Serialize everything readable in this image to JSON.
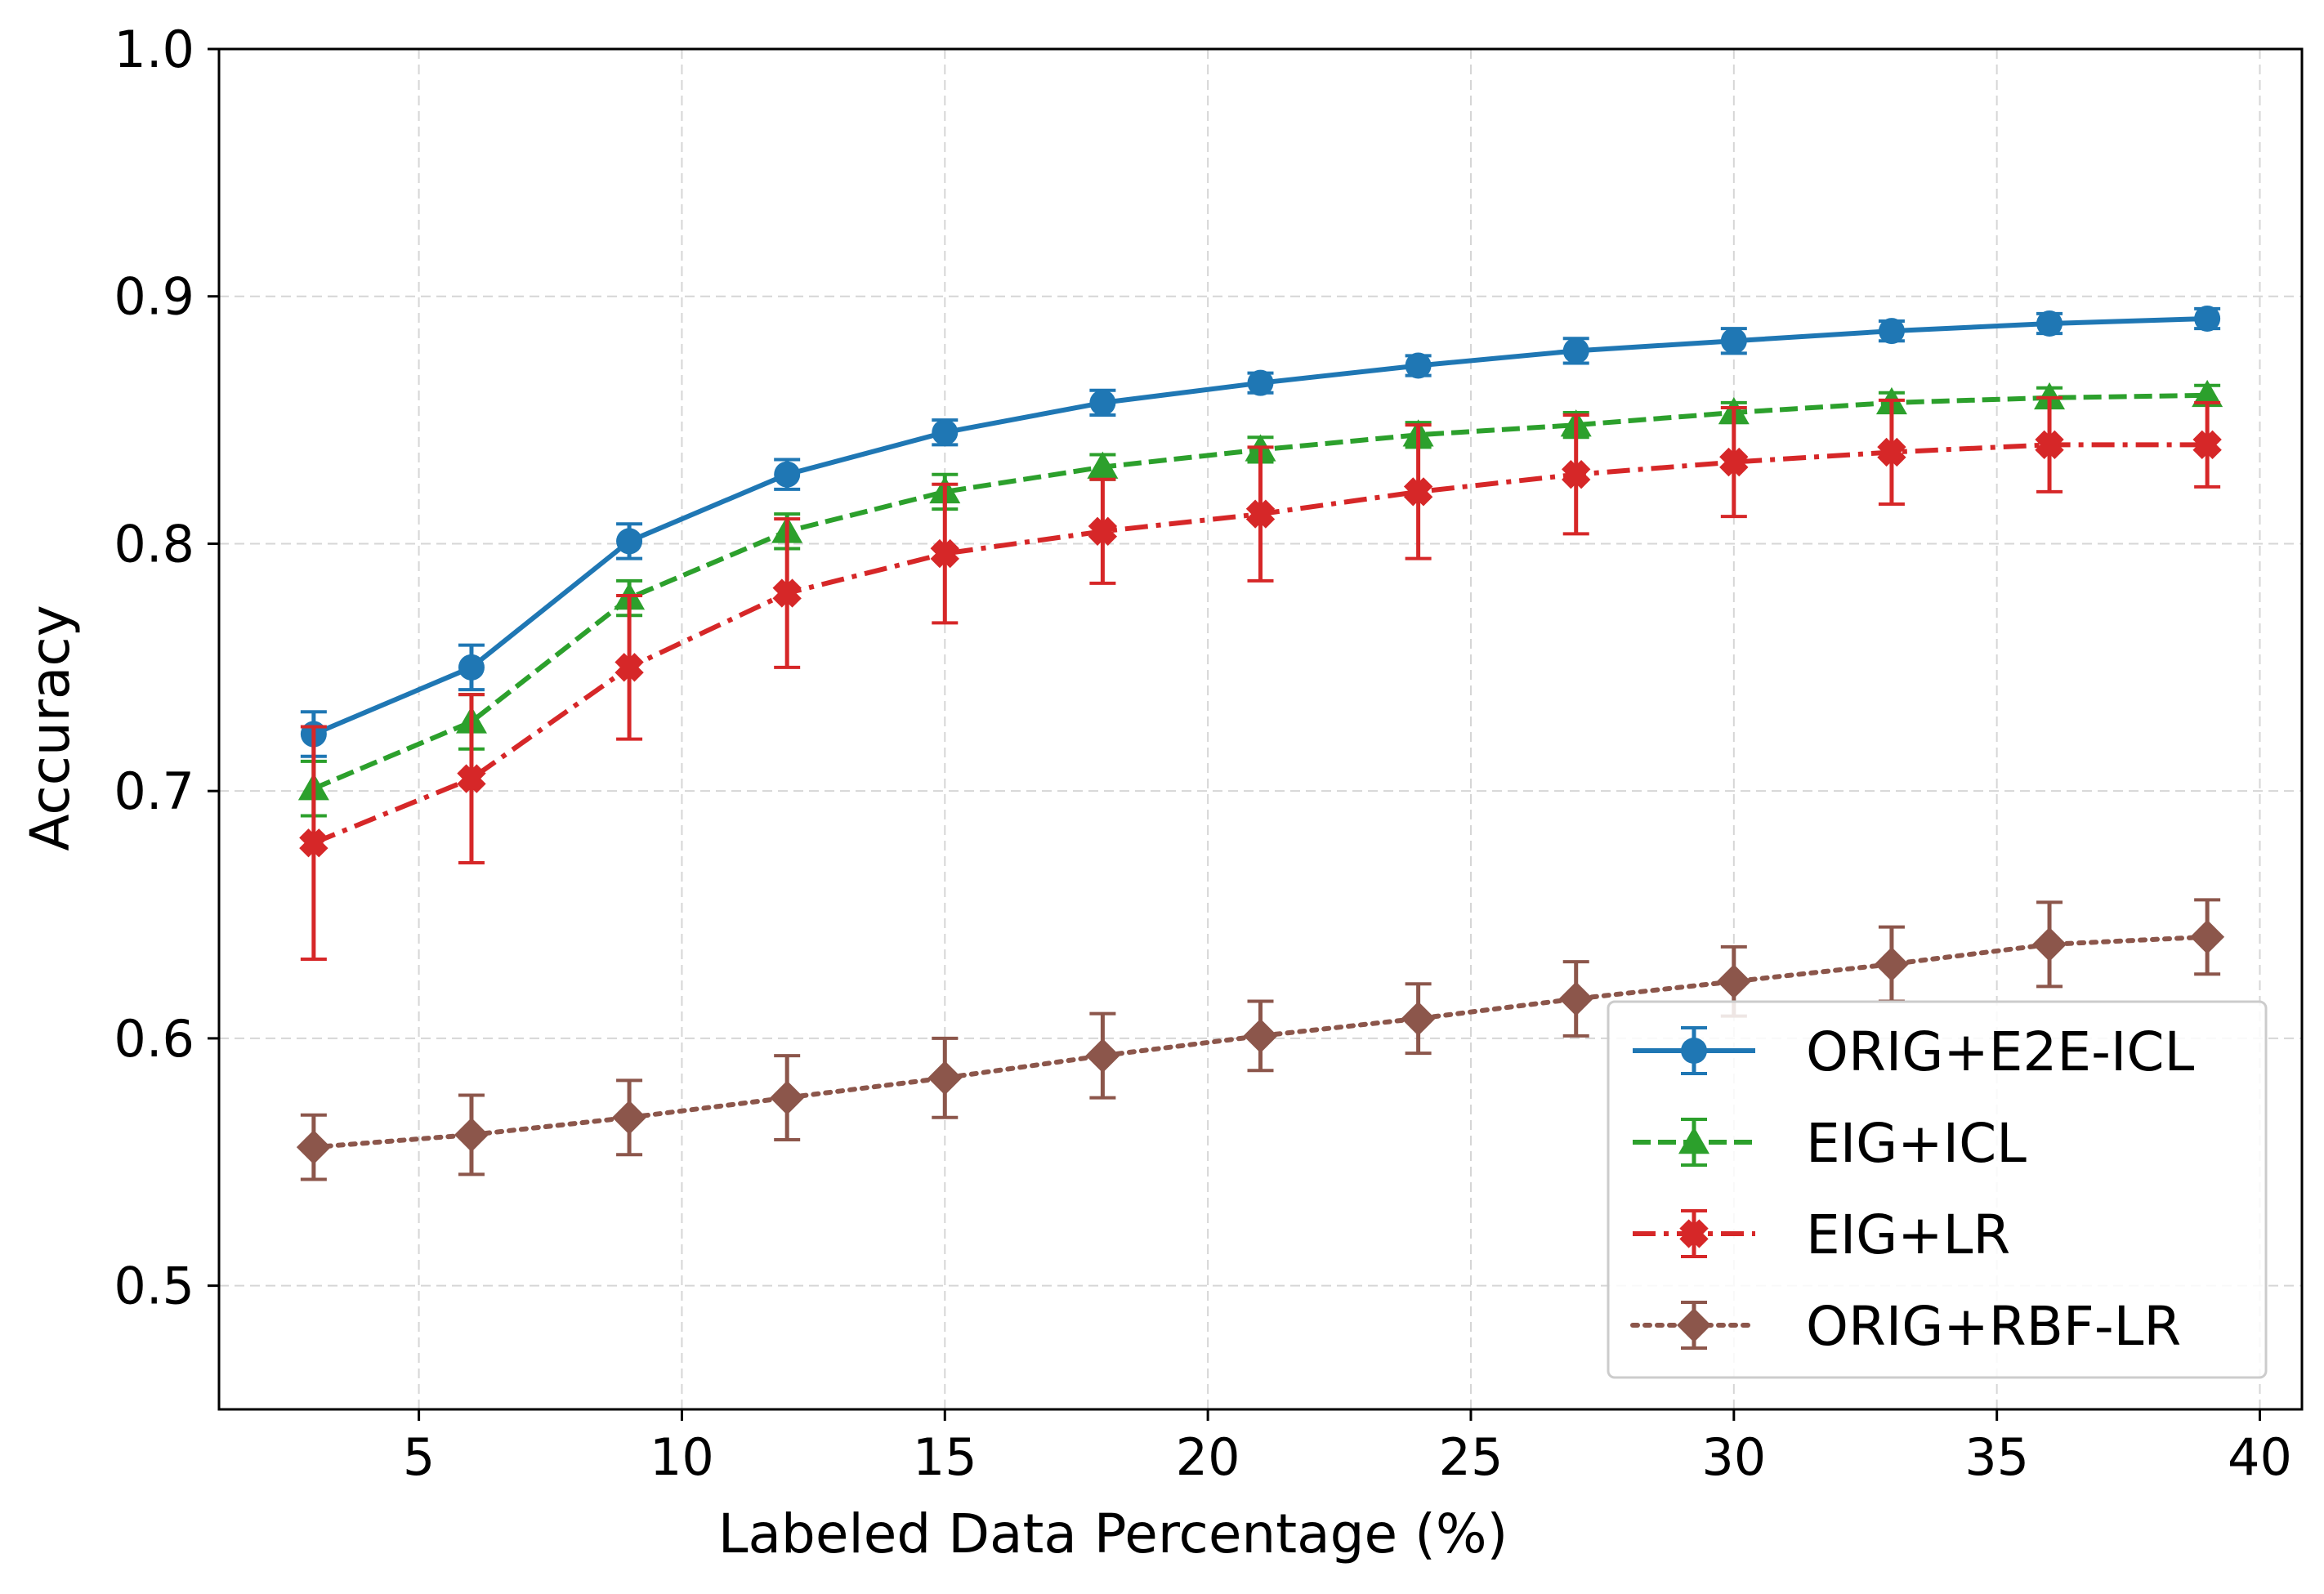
{
  "chart_data": {
    "type": "line",
    "title": "",
    "xlabel": "Labeled Data Percentage (%)",
    "ylabel": "Accuracy",
    "xlim": [
      1.2,
      40.8
    ],
    "ylim": [
      0.45,
      1.0
    ],
    "xticks": [
      5,
      10,
      15,
      20,
      25,
      30,
      35,
      40
    ],
    "xtick_labels": [
      "5",
      "10",
      "15",
      "20",
      "25",
      "30",
      "35",
      "40"
    ],
    "yticks": [
      0.5,
      0.6,
      0.7,
      0.8,
      0.9,
      1.0
    ],
    "ytick_labels": [
      "0.5",
      "0.6",
      "0.7",
      "0.8",
      "0.9",
      "1.0"
    ],
    "grid": true,
    "legend_position": "lower-right",
    "x": [
      3,
      6,
      9,
      12,
      15,
      18,
      21,
      24,
      27,
      30,
      33,
      36,
      39
    ],
    "series": [
      {
        "name": "ORIG+E2E-ICL",
        "color": "#1f77b4",
        "linestyle": "solid",
        "marker": "circle",
        "values": [
          0.723,
          0.75,
          0.801,
          0.828,
          0.845,
          0.857,
          0.865,
          0.872,
          0.878,
          0.882,
          0.886,
          0.889,
          0.891
        ],
        "errors": [
          0.009,
          0.009,
          0.007,
          0.006,
          0.005,
          0.005,
          0.004,
          0.004,
          0.005,
          0.005,
          0.004,
          0.004,
          0.004
        ]
      },
      {
        "name": "EIG+ICL",
        "color": "#2ca02c",
        "linestyle": "dashed",
        "marker": "triangle",
        "values": [
          0.701,
          0.728,
          0.778,
          0.805,
          0.821,
          0.831,
          0.838,
          0.844,
          0.848,
          0.853,
          0.857,
          0.859,
          0.86
        ],
        "errors": [
          0.011,
          0.011,
          0.007,
          0.007,
          0.007,
          0.005,
          0.005,
          0.005,
          0.005,
          0.004,
          0.004,
          0.004,
          0.004
        ]
      },
      {
        "name": "EIG+LR",
        "color": "#d62728",
        "linestyle": "dashdot",
        "marker": "plus",
        "values": [
          0.679,
          0.705,
          0.75,
          0.78,
          0.796,
          0.805,
          0.812,
          0.821,
          0.828,
          0.833,
          0.837,
          0.84,
          0.84
        ],
        "errors": [
          0.047,
          0.034,
          0.029,
          0.03,
          0.028,
          0.021,
          0.027,
          0.027,
          0.024,
          0.022,
          0.021,
          0.019,
          0.017
        ]
      },
      {
        "name": "ORIG+RBF-LR",
        "color": "#8c564b",
        "linestyle": "dotted",
        "marker": "diamond",
        "values": [
          0.556,
          0.561,
          0.568,
          0.576,
          0.584,
          0.593,
          0.601,
          0.608,
          0.616,
          0.623,
          0.63,
          0.638,
          0.641
        ],
        "errors": [
          0.013,
          0.016,
          0.015,
          0.017,
          0.016,
          0.017,
          0.014,
          0.014,
          0.015,
          0.014,
          0.015,
          0.017,
          0.015
        ]
      }
    ]
  }
}
